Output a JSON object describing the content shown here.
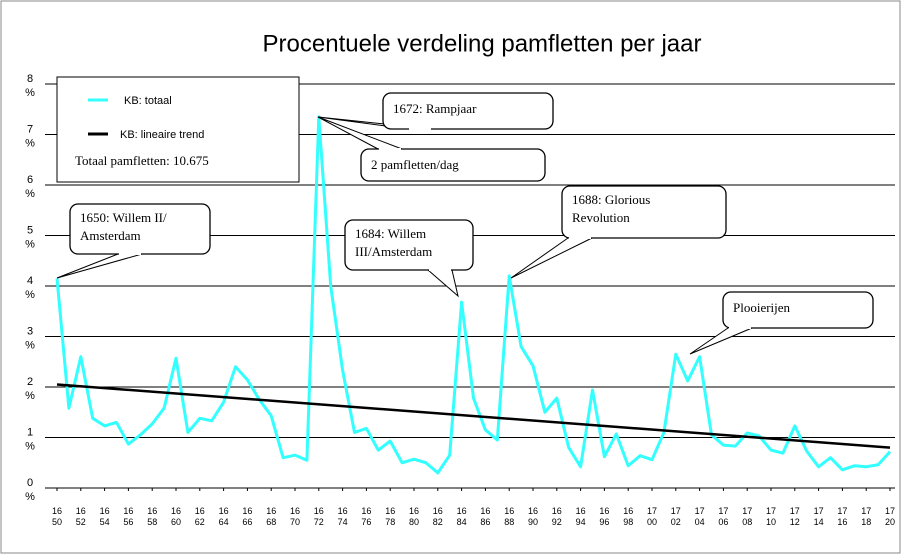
{
  "chart_data": {
    "type": "line",
    "title": "Procentuele verdeling pamfletten per jaar",
    "x": [
      1650,
      1651,
      1652,
      1653,
      1654,
      1655,
      1656,
      1657,
      1658,
      1659,
      1660,
      1661,
      1662,
      1663,
      1664,
      1665,
      1666,
      1667,
      1668,
      1669,
      1670,
      1671,
      1672,
      1673,
      1674,
      1675,
      1676,
      1677,
      1678,
      1679,
      1680,
      1681,
      1682,
      1683,
      1684,
      1685,
      1686,
      1687,
      1688,
      1689,
      1690,
      1691,
      1692,
      1693,
      1694,
      1695,
      1696,
      1697,
      1698,
      1699,
      1700,
      1701,
      1702,
      1703,
      1704,
      1705,
      1706,
      1707,
      1708,
      1709,
      1710,
      1711,
      1712,
      1713,
      1714,
      1715,
      1716,
      1717,
      1718,
      1719,
      1720
    ],
    "series": [
      {
        "name": "KB:  totaal",
        "color": "#33ffff",
        "values": [
          4.15,
          1.58,
          2.6,
          1.38,
          1.23,
          1.3,
          0.87,
          1.05,
          1.27,
          1.58,
          2.57,
          1.1,
          1.38,
          1.33,
          1.7,
          2.4,
          2.14,
          1.75,
          1.43,
          0.6,
          0.65,
          0.55,
          7.35,
          4.0,
          2.33,
          1.1,
          1.18,
          0.75,
          0.93,
          0.5,
          0.57,
          0.5,
          0.3,
          0.65,
          3.68,
          1.78,
          1.15,
          0.95,
          4.2,
          2.8,
          2.42,
          1.5,
          1.78,
          0.8,
          0.42,
          1.94,
          0.62,
          1.07,
          0.44,
          0.64,
          0.56,
          1.1,
          2.65,
          2.12,
          2.6,
          1.05,
          0.85,
          0.83,
          1.09,
          1.03,
          0.75,
          0.69,
          1.23,
          0.73,
          0.42,
          0.6,
          0.36,
          0.44,
          0.42,
          0.46,
          0.72
        ]
      },
      {
        "name": "KB: lineaire trend",
        "color": "#000000",
        "x": [
          1650,
          1720
        ],
        "values": [
          2.05,
          0.8
        ]
      }
    ],
    "xlim": [
      1650,
      1720
    ],
    "xticks": [
      {
        "value": 1650,
        "label": "16 50"
      },
      {
        "value": 1652,
        "label": "16 52"
      },
      {
        "value": 1654,
        "label": "16 54"
      },
      {
        "value": 1656,
        "label": "16 56"
      },
      {
        "value": 1658,
        "label": "16 58"
      },
      {
        "value": 1660,
        "label": "16 60"
      },
      {
        "value": 1662,
        "label": "16 62"
      },
      {
        "value": 1664,
        "label": "16 64"
      },
      {
        "value": 1666,
        "label": "16 66"
      },
      {
        "value": 1668,
        "label": "16 68"
      },
      {
        "value": 1670,
        "label": "16 70"
      },
      {
        "value": 1672,
        "label": "16 72"
      },
      {
        "value": 1674,
        "label": "16 74"
      },
      {
        "value": 1676,
        "label": "16 76"
      },
      {
        "value": 1678,
        "label": "16 78"
      },
      {
        "value": 1680,
        "label": "16 80"
      },
      {
        "value": 1682,
        "label": "16 82"
      },
      {
        "value": 1684,
        "label": "16 84"
      },
      {
        "value": 1686,
        "label": "16 86"
      },
      {
        "value": 1688,
        "label": "16 88"
      },
      {
        "value": 1690,
        "label": "16 90"
      },
      {
        "value": 1692,
        "label": "16 92"
      },
      {
        "value": 1694,
        "label": "16 94"
      },
      {
        "value": 1696,
        "label": "16 96"
      },
      {
        "value": 1698,
        "label": "16 98"
      },
      {
        "value": 1700,
        "label": "17 00"
      },
      {
        "value": 1702,
        "label": "17 02"
      },
      {
        "value": 1704,
        "label": "17 04"
      },
      {
        "value": 1706,
        "label": "17 06"
      },
      {
        "value": 1708,
        "label": "17 08"
      },
      {
        "value": 1710,
        "label": "17 10"
      },
      {
        "value": 1712,
        "label": "17 12"
      },
      {
        "value": 1714,
        "label": "17 14"
      },
      {
        "value": 1716,
        "label": "17 16"
      },
      {
        "value": 1718,
        "label": "17 18"
      },
      {
        "value": 1720,
        "label": "17 20"
      }
    ],
    "ylim": [
      0,
      8
    ],
    "yticks": [
      {
        "value": 0,
        "label": "0 %"
      },
      {
        "value": 1,
        "label": "1 %"
      },
      {
        "value": 2,
        "label": "2 %"
      },
      {
        "value": 3,
        "label": "3 %"
      },
      {
        "value": 4,
        "label": "4 %"
      },
      {
        "value": 5,
        "label": "5 %"
      },
      {
        "value": 6,
        "label": "6 %"
      },
      {
        "value": 7,
        "label": "7 %"
      },
      {
        "value": 8,
        "label": "8 %"
      }
    ],
    "grid": true,
    "legend_note": "Totaal pamfletten: 10.675",
    "annotations": [
      {
        "lines": [
          "1650: Willem II/",
          "Amsterdam"
        ]
      },
      {
        "lines": [
          "1672: Rampjaar"
        ]
      },
      {
        "lines": [
          "2 pamfletten/dag"
        ]
      },
      {
        "lines": [
          "1684: Willem",
          "III/Amsterdam"
        ]
      },
      {
        "lines": [
          "1688: Glorious",
          "Revolution"
        ]
      },
      {
        "lines": [
          "Plooierijen"
        ]
      }
    ]
  }
}
